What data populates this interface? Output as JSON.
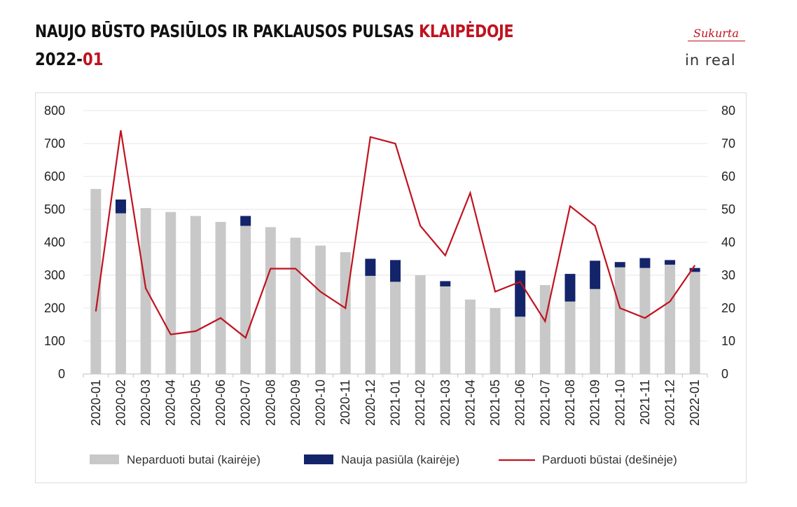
{
  "header": {
    "title_main": "NAUJO BŪSTO PASIŪLOS IR PAKLAUSOS PULSAS ",
    "title_highlight": "KLAIPĖDOJE",
    "period_main": "2022-",
    "period_highlight": "01"
  },
  "logo": {
    "sukurta": "Sukurta",
    "inreal": "in real"
  },
  "chart_data": {
    "type": "bar",
    "categories": [
      "2020-01",
      "2020-02",
      "2020-03",
      "2020-04",
      "2020-05",
      "2020-06",
      "2020-07",
      "2020-08",
      "2020-09",
      "2020-10",
      "2020-11",
      "2020-12",
      "2021-01",
      "2021-02",
      "2021-03",
      "2021-04",
      "2021-05",
      "2021-06",
      "2021-07",
      "2021-08",
      "2021-09",
      "2021-10",
      "2021-11",
      "2021-12",
      "2022-01"
    ],
    "series": [
      {
        "name": "Neparduoti butai (kairėje)",
        "axis": "left",
        "kind": "stacked-bar",
        "color": "#c8c8c8",
        "values": [
          562,
          488,
          504,
          492,
          480,
          462,
          450,
          446,
          414,
          390,
          370,
          298,
          280,
          300,
          266,
          226,
          200,
          174,
          270,
          220,
          258,
          324,
          322,
          332,
          310
        ]
      },
      {
        "name": "Nauja pasiūla (kairėje)",
        "axis": "left",
        "kind": "stacked-bar",
        "color": "#14246a",
        "values": [
          0,
          42,
          0,
          0,
          0,
          0,
          30,
          0,
          0,
          0,
          0,
          52,
          66,
          0,
          16,
          0,
          0,
          140,
          0,
          84,
          86,
          16,
          30,
          14,
          12
        ]
      },
      {
        "name": "Parduoti būstai (dešinėje)",
        "axis": "right",
        "kind": "line",
        "color": "#c0121f",
        "values": [
          19,
          74,
          26,
          12,
          13,
          17,
          11,
          32,
          32,
          25,
          20,
          72,
          70,
          45,
          36,
          55,
          25,
          28,
          16,
          51,
          45,
          20,
          17,
          22,
          33
        ]
      }
    ],
    "y_left": {
      "min": 0,
      "max": 800,
      "ticks": [
        0,
        100,
        200,
        300,
        400,
        500,
        600,
        700,
        800
      ]
    },
    "y_right": {
      "min": 0,
      "max": 80,
      "ticks": [
        0,
        10,
        20,
        30,
        40,
        50,
        60,
        70,
        80
      ]
    },
    "grid": true,
    "legend_position": "bottom"
  }
}
